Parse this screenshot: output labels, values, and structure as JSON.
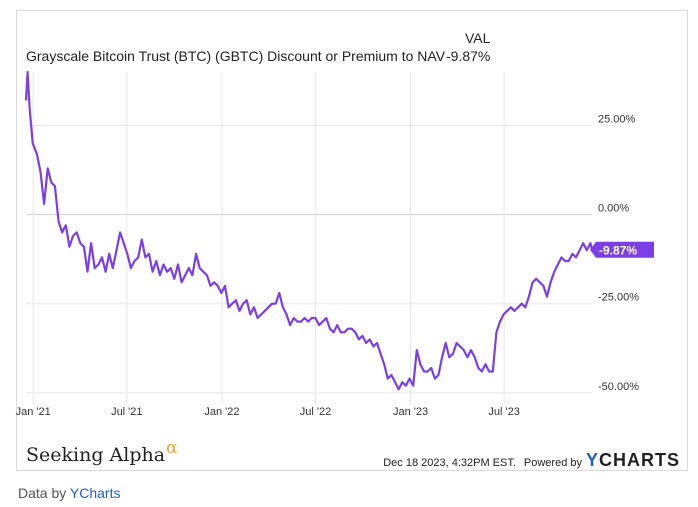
{
  "header": {
    "title": "Grayscale Bitcoin Trust (BTC) (GBTC) Discount or Premium to NAV",
    "val_label": "VAL",
    "val_value": "-9.87%"
  },
  "footer": {
    "brand": "Seeking Alpha",
    "brand_mark": "α",
    "timestamp": "Dec 18 2023, 4:32PM EST.",
    "powered_by": "Powered by",
    "logo_y": "Y",
    "logo_rest": "CHARTS",
    "data_by_prefix": "Data by",
    "data_by_link": "YCharts"
  },
  "colors": {
    "series": "#7b3fe4",
    "grid": "#e6e6e6",
    "zero_line": "#d0d0d0"
  },
  "chart_data": {
    "type": "line",
    "title": "Grayscale Bitcoin Trust (BTC) (GBTC) Discount or Premium to NAV",
    "xlabel": "",
    "ylabel": "",
    "x_range": [
      "2020-12-18",
      "2023-12-18"
    ],
    "ylim": [
      -52,
      40
    ],
    "y_ticks": [
      {
        "value": 25,
        "label": "25.00%"
      },
      {
        "value": 0,
        "label": "0.00%"
      },
      {
        "value": -25,
        "label": "-25.00%"
      },
      {
        "value": -50,
        "label": "-50.00%"
      }
    ],
    "x_ticks": [
      {
        "date": "2021-01-01",
        "label": "Jan '21"
      },
      {
        "date": "2021-07-01",
        "label": "Jul '21"
      },
      {
        "date": "2022-01-01",
        "label": "Jan '22"
      },
      {
        "date": "2022-07-01",
        "label": "Jul '22"
      },
      {
        "date": "2023-01-01",
        "label": "Jan '23"
      },
      {
        "date": "2023-07-01",
        "label": "Jul '23"
      }
    ],
    "grid": true,
    "last_value_label": "-9.87%",
    "series": [
      {
        "points": [
          [
            "2020-12-18",
            32
          ],
          [
            "2020-12-21",
            40
          ],
          [
            "2020-12-25",
            30
          ],
          [
            "2020-12-31",
            20
          ],
          [
            "2021-01-08",
            17
          ],
          [
            "2021-01-15",
            12
          ],
          [
            "2021-01-22",
            3
          ],
          [
            "2021-01-29",
            13
          ],
          [
            "2021-02-05",
            9
          ],
          [
            "2021-02-12",
            8
          ],
          [
            "2021-02-19",
            -2
          ],
          [
            "2021-02-26",
            -5
          ],
          [
            "2021-03-05",
            -3
          ],
          [
            "2021-03-12",
            -9
          ],
          [
            "2021-03-19",
            -6
          ],
          [
            "2021-03-26",
            -5
          ],
          [
            "2021-04-02",
            -8
          ],
          [
            "2021-04-09",
            -9
          ],
          [
            "2021-04-16",
            -16
          ],
          [
            "2021-04-23",
            -8
          ],
          [
            "2021-04-30",
            -15
          ],
          [
            "2021-05-07",
            -14
          ],
          [
            "2021-05-14",
            -12
          ],
          [
            "2021-05-21",
            -16
          ],
          [
            "2021-05-28",
            -11
          ],
          [
            "2021-06-04",
            -15
          ],
          [
            "2021-06-11",
            -10
          ],
          [
            "2021-06-18",
            -5
          ],
          [
            "2021-06-25",
            -8
          ],
          [
            "2021-07-02",
            -11
          ],
          [
            "2021-07-09",
            -15
          ],
          [
            "2021-07-16",
            -13
          ],
          [
            "2021-07-23",
            -12
          ],
          [
            "2021-07-30",
            -7
          ],
          [
            "2021-08-06",
            -12
          ],
          [
            "2021-08-13",
            -11
          ],
          [
            "2021-08-20",
            -16
          ],
          [
            "2021-08-27",
            -13
          ],
          [
            "2021-09-03",
            -17
          ],
          [
            "2021-09-10",
            -14
          ],
          [
            "2021-09-17",
            -16
          ],
          [
            "2021-09-24",
            -15
          ],
          [
            "2021-10-01",
            -18
          ],
          [
            "2021-10-08",
            -14
          ],
          [
            "2021-10-15",
            -19
          ],
          [
            "2021-10-22",
            -17
          ],
          [
            "2021-10-29",
            -15
          ],
          [
            "2021-11-05",
            -17
          ],
          [
            "2021-11-12",
            -11
          ],
          [
            "2021-11-19",
            -15
          ],
          [
            "2021-11-26",
            -16
          ],
          [
            "2021-12-03",
            -17
          ],
          [
            "2021-12-10",
            -20
          ],
          [
            "2021-12-17",
            -19
          ],
          [
            "2021-12-24",
            -20
          ],
          [
            "2021-12-31",
            -22
          ],
          [
            "2022-01-07",
            -20
          ],
          [
            "2022-01-14",
            -26
          ],
          [
            "2022-01-21",
            -25
          ],
          [
            "2022-01-28",
            -24
          ],
          [
            "2022-02-04",
            -27
          ],
          [
            "2022-02-11",
            -25
          ],
          [
            "2022-02-18",
            -24
          ],
          [
            "2022-02-25",
            -28
          ],
          [
            "2022-03-04",
            -26
          ],
          [
            "2022-03-11",
            -29
          ],
          [
            "2022-03-18",
            -28
          ],
          [
            "2022-03-25",
            -27
          ],
          [
            "2022-04-01",
            -26
          ],
          [
            "2022-04-08",
            -25
          ],
          [
            "2022-04-15",
            -25
          ],
          [
            "2022-04-22",
            -22
          ],
          [
            "2022-04-29",
            -26
          ],
          [
            "2022-05-06",
            -28
          ],
          [
            "2022-05-13",
            -31
          ],
          [
            "2022-05-20",
            -29
          ],
          [
            "2022-05-27",
            -30
          ],
          [
            "2022-06-03",
            -30
          ],
          [
            "2022-06-10",
            -29
          ],
          [
            "2022-06-17",
            -30
          ],
          [
            "2022-06-24",
            -29
          ],
          [
            "2022-07-01",
            -29
          ],
          [
            "2022-07-08",
            -31
          ],
          [
            "2022-07-15",
            -30
          ],
          [
            "2022-07-22",
            -29
          ],
          [
            "2022-07-29",
            -32
          ],
          [
            "2022-08-05",
            -33
          ],
          [
            "2022-08-12",
            -31
          ],
          [
            "2022-08-19",
            -33
          ],
          [
            "2022-08-26",
            -33
          ],
          [
            "2022-09-02",
            -32
          ],
          [
            "2022-09-09",
            -32
          ],
          [
            "2022-09-16",
            -33
          ],
          [
            "2022-09-23",
            -35
          ],
          [
            "2022-09-30",
            -34
          ],
          [
            "2022-10-07",
            -36
          ],
          [
            "2022-10-14",
            -35
          ],
          [
            "2022-10-21",
            -37
          ],
          [
            "2022-10-28",
            -36
          ],
          [
            "2022-11-04",
            -39
          ],
          [
            "2022-11-11",
            -42
          ],
          [
            "2022-11-18",
            -46
          ],
          [
            "2022-11-25",
            -45
          ],
          [
            "2022-12-02",
            -47
          ],
          [
            "2022-12-09",
            -49
          ],
          [
            "2022-12-16",
            -47
          ],
          [
            "2022-12-23",
            -48
          ],
          [
            "2022-12-30",
            -46
          ],
          [
            "2023-01-06",
            -48
          ],
          [
            "2023-01-13",
            -38
          ],
          [
            "2023-01-20",
            -42
          ],
          [
            "2023-01-27",
            -44
          ],
          [
            "2023-02-03",
            -44
          ],
          [
            "2023-02-10",
            -43
          ],
          [
            "2023-02-17",
            -46
          ],
          [
            "2023-02-24",
            -45
          ],
          [
            "2023-03-03",
            -40
          ],
          [
            "2023-03-10",
            -36
          ],
          [
            "2023-03-17",
            -40
          ],
          [
            "2023-03-24",
            -39
          ],
          [
            "2023-03-31",
            -36
          ],
          [
            "2023-04-07",
            -37
          ],
          [
            "2023-04-14",
            -38
          ],
          [
            "2023-04-21",
            -40
          ],
          [
            "2023-04-28",
            -38
          ],
          [
            "2023-05-05",
            -40
          ],
          [
            "2023-05-12",
            -43
          ],
          [
            "2023-05-19",
            -44
          ],
          [
            "2023-05-26",
            -42
          ],
          [
            "2023-06-02",
            -44
          ],
          [
            "2023-06-09",
            -44
          ],
          [
            "2023-06-16",
            -33
          ],
          [
            "2023-06-23",
            -30
          ],
          [
            "2023-06-30",
            -28
          ],
          [
            "2023-07-07",
            -27
          ],
          [
            "2023-07-14",
            -26
          ],
          [
            "2023-07-21",
            -27
          ],
          [
            "2023-07-28",
            -26
          ],
          [
            "2023-08-04",
            -25
          ],
          [
            "2023-08-11",
            -26
          ],
          [
            "2023-08-18",
            -23
          ],
          [
            "2023-08-25",
            -19
          ],
          [
            "2023-09-01",
            -18
          ],
          [
            "2023-09-08",
            -19
          ],
          [
            "2023-09-15",
            -20
          ],
          [
            "2023-09-22",
            -23
          ],
          [
            "2023-09-29",
            -19
          ],
          [
            "2023-10-06",
            -16
          ],
          [
            "2023-10-13",
            -14
          ],
          [
            "2023-10-20",
            -12
          ],
          [
            "2023-10-27",
            -13
          ],
          [
            "2023-11-03",
            -13
          ],
          [
            "2023-11-10",
            -11
          ],
          [
            "2023-11-17",
            -12
          ],
          [
            "2023-11-24",
            -10
          ],
          [
            "2023-12-01",
            -8
          ],
          [
            "2023-12-08",
            -10
          ],
          [
            "2023-12-15",
            -8
          ],
          [
            "2023-12-18",
            -9.87
          ]
        ]
      }
    ]
  }
}
